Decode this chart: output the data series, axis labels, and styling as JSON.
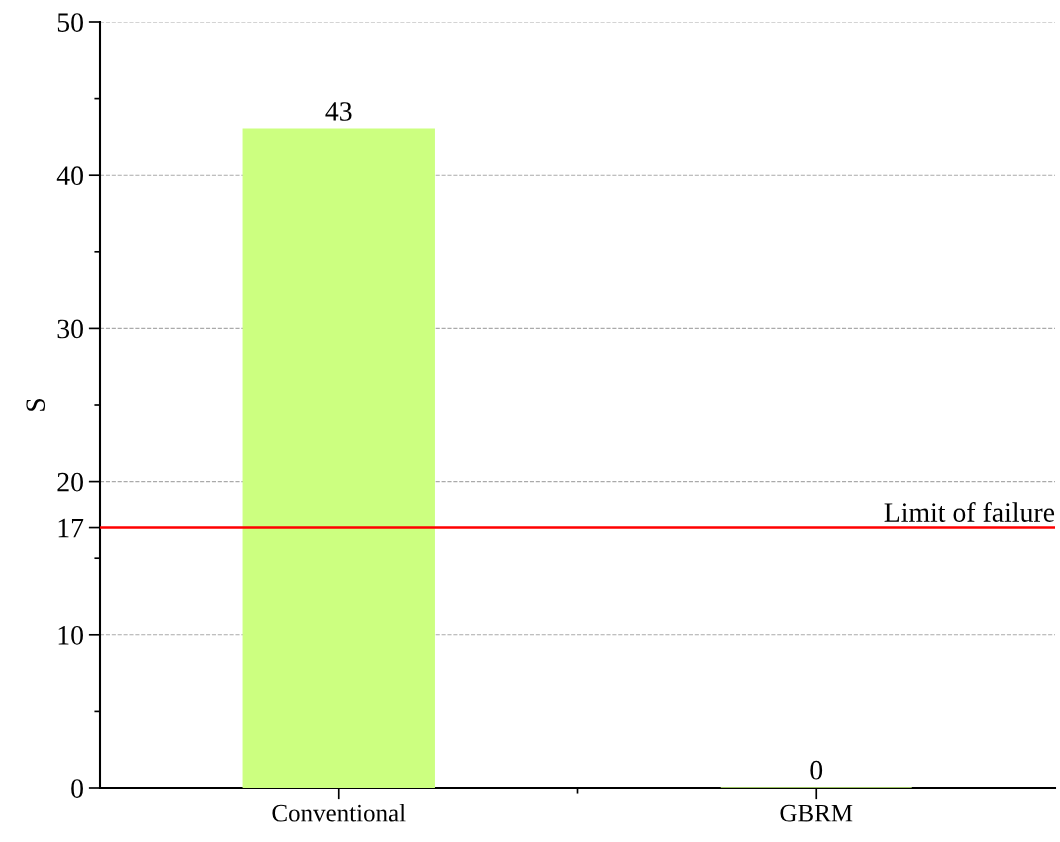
{
  "chart_data": {
    "type": "bar",
    "ylabel": "S",
    "categories": [
      "Conventional",
      "GBRM"
    ],
    "values": [
      43,
      0
    ],
    "color": "#ccff80",
    "data_labels": true,
    "ylim": [
      0,
      50
    ],
    "yticks": [
      0,
      10,
      17,
      20,
      30,
      40,
      50
    ],
    "grid": "y",
    "ref_lines": [
      {
        "axis": "y",
        "value": 17,
        "label": "Limit of failure",
        "color": "#ff0000"
      }
    ]
  }
}
